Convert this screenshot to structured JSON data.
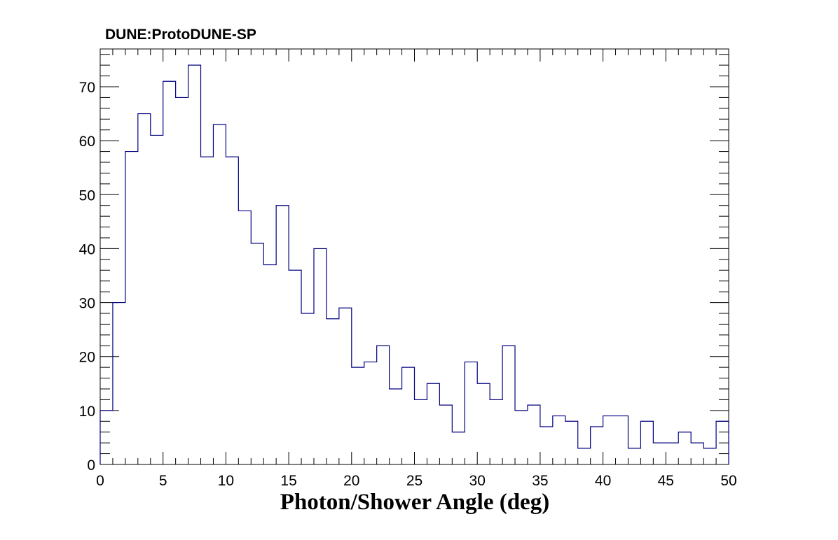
{
  "chart_data": {
    "type": "bar",
    "title": "DUNE:ProtoDUNE-SP",
    "xlabel": "Photon/Shower Angle (deg)",
    "ylabel": "",
    "xlim": [
      0,
      50
    ],
    "ylim": [
      0,
      77
    ],
    "x_ticks": [
      0,
      5,
      10,
      15,
      20,
      25,
      30,
      35,
      40,
      45,
      50
    ],
    "y_ticks": [
      0,
      10,
      20,
      30,
      40,
      50,
      60,
      70
    ],
    "bin_edges": [
      0,
      1,
      2,
      3,
      4,
      5,
      6,
      7,
      8,
      9,
      10,
      11,
      12,
      13,
      14,
      15,
      16,
      17,
      18,
      19,
      20,
      21,
      22,
      23,
      24,
      25,
      26,
      27,
      28,
      29,
      30,
      31,
      32,
      33,
      34,
      35,
      36,
      37,
      38,
      39,
      40,
      41,
      42,
      43,
      44,
      45,
      46,
      47,
      48,
      49,
      50
    ],
    "values": [
      10,
      30,
      58,
      65,
      61,
      71,
      68,
      74,
      57,
      63,
      57,
      47,
      41,
      37,
      48,
      36,
      28,
      40,
      27,
      29,
      18,
      19,
      22,
      14,
      18,
      12,
      15,
      11,
      6,
      19,
      15,
      12,
      22,
      10,
      11,
      7,
      9,
      8,
      3,
      7,
      9,
      9,
      3,
      8,
      4,
      4,
      6,
      4,
      3,
      8
    ],
    "grid": false,
    "line_color": "#000080"
  }
}
